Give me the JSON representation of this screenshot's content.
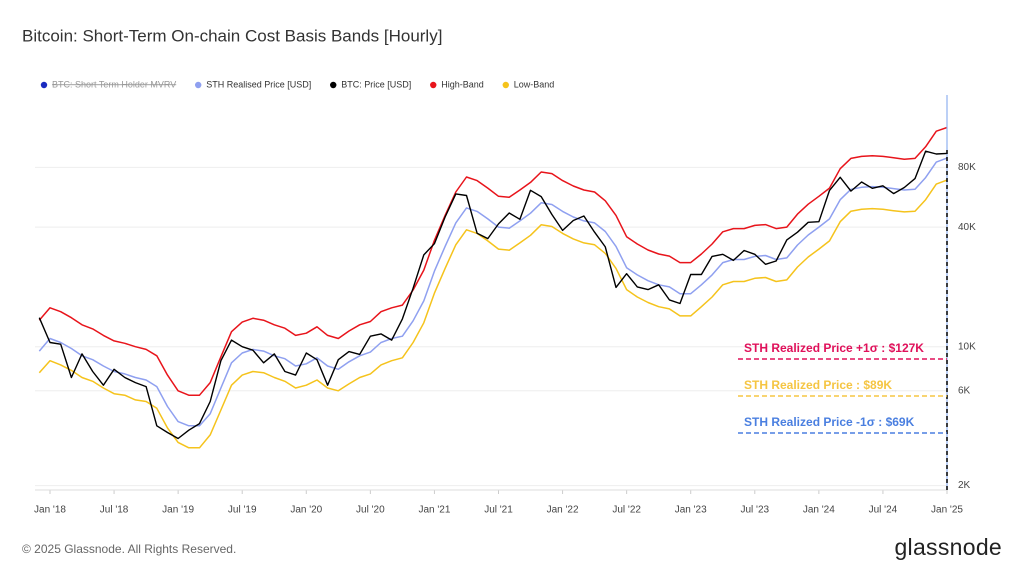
{
  "chart_data": {
    "type": "line",
    "title": "Bitcoin: Short-Term On-chain Cost Basis Bands [Hourly]",
    "footer": "© 2025 Glassnode. All Rights Reserved.",
    "brand": "glassnode",
    "log_y": true,
    "grid": true,
    "legend": "top",
    "ylim": [
      1900,
      185000
    ],
    "yticks": [
      {
        "value": 2000,
        "label": "2K"
      },
      {
        "value": 6000,
        "label": "6K"
      },
      {
        "value": 10000,
        "label": "10K"
      },
      {
        "value": 40000,
        "label": "40K"
      },
      {
        "value": 80000,
        "label": "80K"
      }
    ],
    "xticks": [
      {
        "value": "2018-01",
        "label": "Jan '18"
      },
      {
        "value": "2018-07",
        "label": "Jul '18"
      },
      {
        "value": "2019-01",
        "label": "Jan '19"
      },
      {
        "value": "2019-07",
        "label": "Jul '19"
      },
      {
        "value": "2020-01",
        "label": "Jan '20"
      },
      {
        "value": "2020-07",
        "label": "Jul '20"
      },
      {
        "value": "2021-01",
        "label": "Jan '21"
      },
      {
        "value": "2021-07",
        "label": "Jul '21"
      },
      {
        "value": "2022-01",
        "label": "Jan '22"
      },
      {
        "value": "2022-07",
        "label": "Jul '22"
      },
      {
        "value": "2023-01",
        "label": "Jan '23"
      },
      {
        "value": "2023-07",
        "label": "Jul '23"
      },
      {
        "value": "2024-01",
        "label": "Jan '24"
      },
      {
        "value": "2024-07",
        "label": "Jul '24"
      },
      {
        "value": "2025-01",
        "label": "Jan '25"
      }
    ],
    "hidden_series": [
      {
        "name": "BTC: Short Term Holder MVRV",
        "color": "#1a2bc0"
      }
    ],
    "x": [
      "2017-12",
      "2018-01",
      "2018-02",
      "2018-03",
      "2018-04",
      "2018-05",
      "2018-06",
      "2018-07",
      "2018-08",
      "2018-09",
      "2018-10",
      "2018-11",
      "2018-12",
      "2019-01",
      "2019-02",
      "2019-03",
      "2019-04",
      "2019-05",
      "2019-06",
      "2019-07",
      "2019-08",
      "2019-09",
      "2019-10",
      "2019-11",
      "2019-12",
      "2020-01",
      "2020-02",
      "2020-03",
      "2020-04",
      "2020-05",
      "2020-06",
      "2020-07",
      "2020-08",
      "2020-09",
      "2020-10",
      "2020-11",
      "2020-12",
      "2021-01",
      "2021-02",
      "2021-03",
      "2021-04",
      "2021-05",
      "2021-06",
      "2021-07",
      "2021-08",
      "2021-09",
      "2021-10",
      "2021-11",
      "2021-12",
      "2022-01",
      "2022-02",
      "2022-03",
      "2022-04",
      "2022-05",
      "2022-06",
      "2022-07",
      "2022-08",
      "2022-09",
      "2022-10",
      "2022-11",
      "2022-12",
      "2023-01",
      "2023-02",
      "2023-03",
      "2023-04",
      "2023-05",
      "2023-06",
      "2023-07",
      "2023-08",
      "2023-09",
      "2023-10",
      "2023-11",
      "2023-12",
      "2024-01",
      "2024-02",
      "2024-03",
      "2024-04",
      "2024-05",
      "2024-06",
      "2024-07",
      "2024-08",
      "2024-09",
      "2024-10",
      "2024-11",
      "2024-12",
      "2025-01"
    ],
    "series": [
      {
        "name": "STH Realised Price [USD]",
        "color": "#8fa0f0",
        "values": [
          9500,
          11000,
          10500,
          9800,
          9000,
          8600,
          8000,
          7500,
          7300,
          7000,
          6800,
          6300,
          5000,
          4200,
          4000,
          4000,
          4600,
          6200,
          8300,
          9300,
          9700,
          9500,
          9000,
          8700,
          8000,
          8200,
          8800,
          8000,
          7700,
          8400,
          9000,
          9400,
          10500,
          11000,
          11300,
          13500,
          17000,
          24000,
          32000,
          42000,
          50000,
          48000,
          44000,
          40000,
          39500,
          43000,
          47000,
          53000,
          52000,
          48000,
          45000,
          43000,
          42000,
          38000,
          32000,
          25000,
          23000,
          21500,
          20500,
          20000,
          18500,
          18500,
          20500,
          23000,
          26500,
          27500,
          27500,
          28500,
          28800,
          27500,
          28000,
          32500,
          36500,
          40000,
          44000,
          55000,
          62000,
          63500,
          64000,
          63500,
          62500,
          61500,
          62000,
          71000,
          85000,
          89000
        ]
      },
      {
        "name": "BTC: Price [USD]",
        "color": "#000000",
        "values": [
          14000,
          10500,
          10300,
          7000,
          9200,
          7500,
          6400,
          7700,
          7000,
          6600,
          6300,
          4000,
          3700,
          3450,
          3800,
          4100,
          5300,
          8500,
          10800,
          10000,
          9600,
          8300,
          9200,
          7500,
          7200,
          9300,
          8600,
          6400,
          8600,
          9450,
          9150,
          11300,
          11600,
          10800,
          13800,
          19700,
          29000,
          33000,
          45000,
          58800,
          57700,
          37300,
          35000,
          41500,
          47100,
          43800,
          61300,
          57000,
          46300,
          38500,
          43200,
          45500,
          37700,
          31800,
          19900,
          23300,
          20000,
          19400,
          20500,
          17200,
          16500,
          23100,
          23100,
          28500,
          29200,
          27200,
          30500,
          29200,
          26000,
          27000,
          34500,
          37700,
          42300,
          42600,
          61200,
          71300,
          60700,
          67500,
          62700,
          64600,
          59000,
          63300,
          70200,
          96400,
          93400,
          94000
        ]
      },
      {
        "name": "High-Band",
        "color": "#e8141b",
        "values": [
          13600,
          15700,
          15000,
          14000,
          12900,
          12300,
          11400,
          10700,
          10400,
          10000,
          9700,
          9000,
          7200,
          6000,
          5700,
          5700,
          6600,
          8900,
          11900,
          13300,
          13900,
          13600,
          12900,
          12400,
          11400,
          11700,
          12600,
          11400,
          11000,
          12000,
          12900,
          13400,
          15000,
          15700,
          16200,
          19300,
          24300,
          34300,
          45800,
          60100,
          71500,
          68600,
          62900,
          57200,
          56500,
          61500,
          67200,
          75800,
          74400,
          68600,
          64400,
          61500,
          60100,
          54300,
          45800,
          35800,
          32900,
          30700,
          29300,
          28600,
          26500,
          26500,
          29300,
          32900,
          37900,
          39300,
          39300,
          40800,
          41200,
          39300,
          40000,
          46500,
          52200,
          57200,
          62900,
          78700,
          88700,
          90800,
          91500,
          90800,
          89400,
          87900,
          88700,
          101500,
          121600,
          127000
        ]
      },
      {
        "name": "Low-Band",
        "color": "#f5c31c",
        "values": [
          7400,
          8500,
          8100,
          7600,
          7000,
          6700,
          6200,
          5800,
          5700,
          5400,
          5300,
          4900,
          3900,
          3300,
          3100,
          3100,
          3600,
          4800,
          6400,
          7200,
          7500,
          7400,
          7000,
          6700,
          6200,
          6400,
          6800,
          6200,
          6000,
          6500,
          7000,
          7300,
          8100,
          8500,
          8800,
          10500,
          13200,
          18600,
          24800,
          32600,
          38800,
          37200,
          34100,
          31000,
          30600,
          33300,
          36400,
          41100,
          40300,
          37200,
          34900,
          33300,
          32600,
          29500,
          24800,
          19400,
          17800,
          16700,
          15900,
          15500,
          14300,
          14300,
          15900,
          17800,
          20500,
          21300,
          21300,
          22100,
          22300,
          21300,
          21700,
          25200,
          28300,
          31000,
          34100,
          42600,
          48100,
          49200,
          49600,
          49200,
          48400,
          47700,
          48100,
          55000,
          65900,
          69000
        ]
      }
    ],
    "annotations": [
      {
        "text": "STH Realized Price +1σ : $127K",
        "color": "#e0105a"
      },
      {
        "text": "STH Realized Price  : $89K",
        "color": "#f5c542"
      },
      {
        "text": "STH Realized Price -1σ : $69K",
        "color": "#4a7fe0"
      }
    ]
  }
}
